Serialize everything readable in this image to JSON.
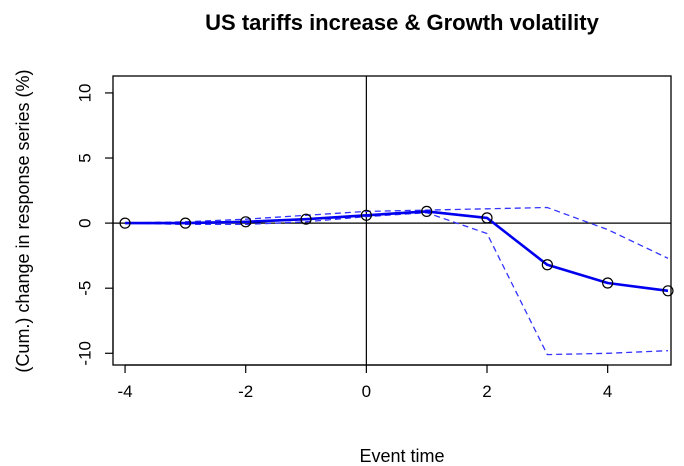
{
  "chart_data": {
    "type": "line",
    "title": "US tariffs increase & Growth volatility",
    "xlabel": "Event time",
    "ylabel": "(Cum.) change in response series (%)",
    "xlim": [
      -4.2,
      5.05
    ],
    "ylim": [
      -10.9,
      11.3
    ],
    "x_ticks": [
      -4,
      -2,
      0,
      2,
      4
    ],
    "y_ticks": [
      -10,
      -5,
      0,
      5,
      10
    ],
    "x_tick_labels": [
      "-4",
      "-2",
      "0",
      "2",
      "4"
    ],
    "y_tick_labels": [
      "-10",
      "-5",
      "0",
      "5",
      "10"
    ],
    "reference_lines": {
      "x": 0,
      "y": 0
    },
    "grid": false,
    "legend": "none",
    "colors": {
      "estimate": "#0000ee",
      "bands": "#3333ff",
      "points": "#000000",
      "reference": "#000000"
    },
    "x": [
      -4,
      -3,
      -2,
      -1,
      0,
      1,
      2,
      3,
      4,
      5
    ],
    "series": [
      {
        "role": "estimate",
        "values": [
          0.0,
          0.0,
          0.1,
          0.3,
          0.6,
          0.9,
          0.4,
          -3.2,
          -4.6,
          -5.2
        ]
      },
      {
        "role": "upper",
        "values": [
          0.0,
          0.1,
          0.3,
          0.6,
          0.9,
          1.0,
          1.1,
          1.2,
          -0.5,
          -2.7
        ]
      },
      {
        "role": "lower",
        "values": [
          0.0,
          -0.1,
          -0.1,
          0.1,
          0.5,
          0.8,
          -0.8,
          -10.1,
          -10.0,
          -9.8
        ]
      }
    ]
  }
}
